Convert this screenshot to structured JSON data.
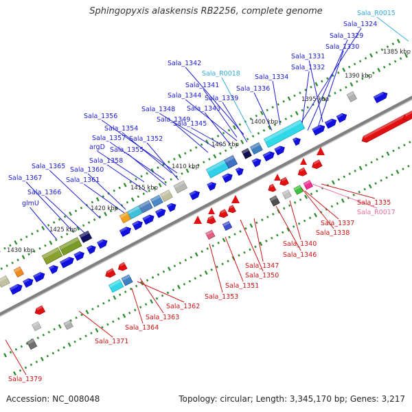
{
  "title": "Sphingopyxis alaskensis RB2256, complete genome",
  "footer": {
    "accession": "Accession: NC_008048",
    "summary": "Topology: circular; Length: 3,345,170 bp; Genes: 3,217"
  },
  "colors": {
    "background": "#ffffff",
    "backbone": "#808080",
    "tick_dot": "#2e8b2e",
    "forward_label": "#1a1ad4",
    "reverse_label": "#cc1111",
    "rna_forward_label": "#33aadd",
    "rna_reverse_label": "#ee6fa0",
    "forward_gene": "#1010e0",
    "reverse_gene": "#e01010"
  },
  "kbp_ticks": [
    "1385 kbp",
    "1390 kbp",
    "1395 kbp",
    "1400 kbp",
    "1405 kbp",
    "1410 kbp",
    "1415 kbp",
    "1420 kbp",
    "1425 kbp",
    "1430 kbp"
  ],
  "forward_genes": [
    "Sala_R0015",
    "Sala_1324",
    "Sala_1329",
    "Sala_1330",
    "Sala_1331",
    "Sala_1332",
    "Sala_1334",
    "Sala_1336",
    "Sala_1342",
    "Sala_R0018",
    "Sala_1341",
    "Sala_1344",
    "Sala_1339",
    "Sala_1343",
    "Sala_1348",
    "Sala_1349",
    "Sala_1345",
    "Sala_1356",
    "Sala_1354",
    "Sala_1357",
    "Sala_1352",
    "argD",
    "Sala_1355",
    "Sala_1358",
    "Sala_1365",
    "Sala_1360",
    "Sala_1367",
    "Sala_1361",
    "Sala_1366",
    "glmU"
  ],
  "reverse_genes": [
    "Sala_1335",
    "Sala_R0017",
    "Sala_1337",
    "Sala_1338",
    "Sala_1340",
    "Sala_1346",
    "Sala_1347",
    "Sala_1350",
    "Sala_1351",
    "Sala_1353",
    "Sala_1362",
    "Sala_1363",
    "Sala_1364",
    "Sala_1371",
    "Sala_1379"
  ]
}
